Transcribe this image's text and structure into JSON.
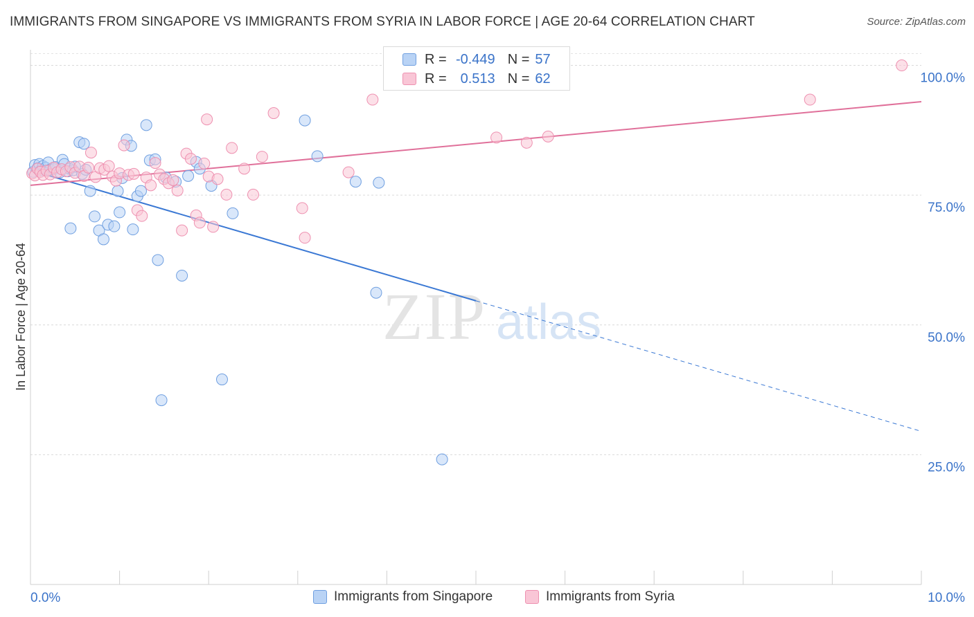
{
  "title": "IMMIGRANTS FROM SINGAPORE VS IMMIGRANTS FROM SYRIA IN LABOR FORCE | AGE 20-64 CORRELATION CHART",
  "source": "Source: ZipAtlas.com",
  "legend": {
    "r_label": "R =",
    "n_label": "N =",
    "series1": {
      "r": "-0.449",
      "n": "57"
    },
    "series2": {
      "r": "0.513",
      "n": "62"
    }
  },
  "watermark": {
    "zip": "ZIP",
    "atlas": "atlas"
  },
  "colors": {
    "blue_fill": "#b9d3f5",
    "blue_stroke": "#6f9fe0",
    "blue_line": "#3a78d4",
    "pink_fill": "#f9c6d6",
    "pink_stroke": "#ee90b0",
    "pink_line": "#e0709a",
    "axis_label": "#3a73c9"
  },
  "chart_data": {
    "type": "scatter",
    "xlabel": "",
    "ylabel": "In Labor Force | Age 20-64",
    "xlim": [
      0,
      10
    ],
    "ylim": [
      0,
      103
    ],
    "x_tick_labels": [
      "0.0%",
      "10.0%"
    ],
    "y_ticks": [
      25,
      50,
      75,
      100
    ],
    "y_tick_labels": [
      "25.0%",
      "50.0%",
      "75.0%",
      "100.0%"
    ],
    "grid": true,
    "series": [
      {
        "name": "Immigrants from Singapore",
        "color": "blue",
        "r": -0.449,
        "n": 57,
        "trend": {
          "x0": 0.0,
          "y0": 79.8,
          "x1": 10.0,
          "y1": 29.5,
          "solid_until": 5.0
        },
        "points": [
          [
            0.03,
            79.5
          ],
          [
            0.05,
            80.8
          ],
          [
            0.08,
            80.2
          ],
          [
            0.1,
            81.0
          ],
          [
            0.12,
            79.8
          ],
          [
            0.14,
            80.6
          ],
          [
            0.17,
            80.3
          ],
          [
            0.2,
            81.3
          ],
          [
            0.22,
            79.9
          ],
          [
            0.26,
            80.0
          ],
          [
            0.28,
            80.4
          ],
          [
            0.33,
            79.4
          ],
          [
            0.36,
            81.8
          ],
          [
            0.38,
            81.0
          ],
          [
            0.42,
            79.6
          ],
          [
            0.44,
            80.1
          ],
          [
            0.48,
            79.8
          ],
          [
            0.5,
            80.5
          ],
          [
            0.55,
            85.2
          ],
          [
            0.58,
            79.1
          ],
          [
            0.62,
            79.9
          ],
          [
            0.67,
            75.8
          ],
          [
            0.72,
            70.9
          ],
          [
            0.77,
            68.2
          ],
          [
            0.82,
            66.5
          ],
          [
            0.87,
            69.3
          ],
          [
            0.94,
            69.0
          ],
          [
            0.98,
            75.8
          ],
          [
            1.03,
            78.3
          ],
          [
            1.08,
            85.7
          ],
          [
            1.13,
            84.5
          ],
          [
            1.15,
            68.4
          ],
          [
            1.2,
            74.8
          ],
          [
            1.24,
            75.8
          ],
          [
            1.3,
            88.5
          ],
          [
            1.34,
            81.7
          ],
          [
            1.4,
            81.9
          ],
          [
            1.43,
            62.5
          ],
          [
            1.47,
            35.5
          ],
          [
            1.52,
            78.4
          ],
          [
            1.63,
            77.6
          ],
          [
            1.7,
            59.5
          ],
          [
            1.77,
            78.7
          ],
          [
            1.86,
            81.4
          ],
          [
            1.9,
            80.1
          ],
          [
            2.03,
            76.8
          ],
          [
            2.15,
            39.5
          ],
          [
            2.27,
            71.5
          ],
          [
            3.08,
            89.4
          ],
          [
            3.22,
            82.5
          ],
          [
            3.65,
            77.6
          ],
          [
            3.88,
            56.2
          ],
          [
            3.91,
            77.4
          ],
          [
            4.62,
            24.1
          ],
          [
            0.6,
            84.9
          ],
          [
            1.0,
            71.7
          ],
          [
            0.45,
            68.6
          ]
        ]
      },
      {
        "name": "Immigrants from Syria",
        "color": "pink",
        "r": 0.513,
        "n": 62,
        "trend": {
          "x0": 0.0,
          "y0": 76.9,
          "x1": 10.0,
          "y1": 93.0
        },
        "points": [
          [
            0.02,
            79.2
          ],
          [
            0.05,
            78.8
          ],
          [
            0.08,
            80.1
          ],
          [
            0.11,
            79.5
          ],
          [
            0.14,
            78.9
          ],
          [
            0.18,
            79.7
          ],
          [
            0.22,
            79.0
          ],
          [
            0.26,
            80.3
          ],
          [
            0.3,
            79.4
          ],
          [
            0.35,
            80.0
          ],
          [
            0.4,
            79.6
          ],
          [
            0.45,
            80.4
          ],
          [
            0.5,
            79.3
          ],
          [
            0.55,
            80.5
          ],
          [
            0.6,
            78.7
          ],
          [
            0.65,
            80.3
          ],
          [
            0.68,
            83.2
          ],
          [
            0.73,
            78.5
          ],
          [
            0.78,
            80.2
          ],
          [
            0.83,
            79.9
          ],
          [
            0.88,
            80.6
          ],
          [
            0.92,
            78.6
          ],
          [
            0.96,
            77.8
          ],
          [
            1.0,
            79.2
          ],
          [
            1.05,
            84.6
          ],
          [
            1.1,
            78.9
          ],
          [
            1.16,
            79.1
          ],
          [
            1.2,
            72.1
          ],
          [
            1.25,
            71.0
          ],
          [
            1.3,
            78.4
          ],
          [
            1.35,
            76.9
          ],
          [
            1.4,
            81.2
          ],
          [
            1.45,
            79.0
          ],
          [
            1.5,
            78.1
          ],
          [
            1.55,
            77.3
          ],
          [
            1.6,
            77.9
          ],
          [
            1.65,
            75.9
          ],
          [
            1.7,
            68.2
          ],
          [
            1.75,
            83.0
          ],
          [
            1.8,
            82.0
          ],
          [
            1.86,
            71.1
          ],
          [
            1.9,
            69.7
          ],
          [
            1.95,
            81.1
          ],
          [
            2.0,
            78.6
          ],
          [
            2.05,
            68.9
          ],
          [
            2.1,
            78.1
          ],
          [
            2.2,
            75.1
          ],
          [
            2.26,
            84.1
          ],
          [
            2.4,
            80.1
          ],
          [
            2.5,
            75.1
          ],
          [
            2.6,
            82.4
          ],
          [
            2.73,
            90.8
          ],
          [
            3.05,
            72.5
          ],
          [
            3.08,
            66.8
          ],
          [
            3.57,
            79.4
          ],
          [
            3.84,
            93.4
          ],
          [
            5.23,
            86.1
          ],
          [
            5.57,
            85.1
          ],
          [
            5.81,
            86.3
          ],
          [
            8.75,
            93.4
          ],
          [
            9.78,
            100.0
          ],
          [
            1.98,
            89.6
          ]
        ]
      }
    ]
  },
  "bottom_legend": {
    "item1": "Immigrants from Singapore",
    "item2": "Immigrants from Syria"
  }
}
